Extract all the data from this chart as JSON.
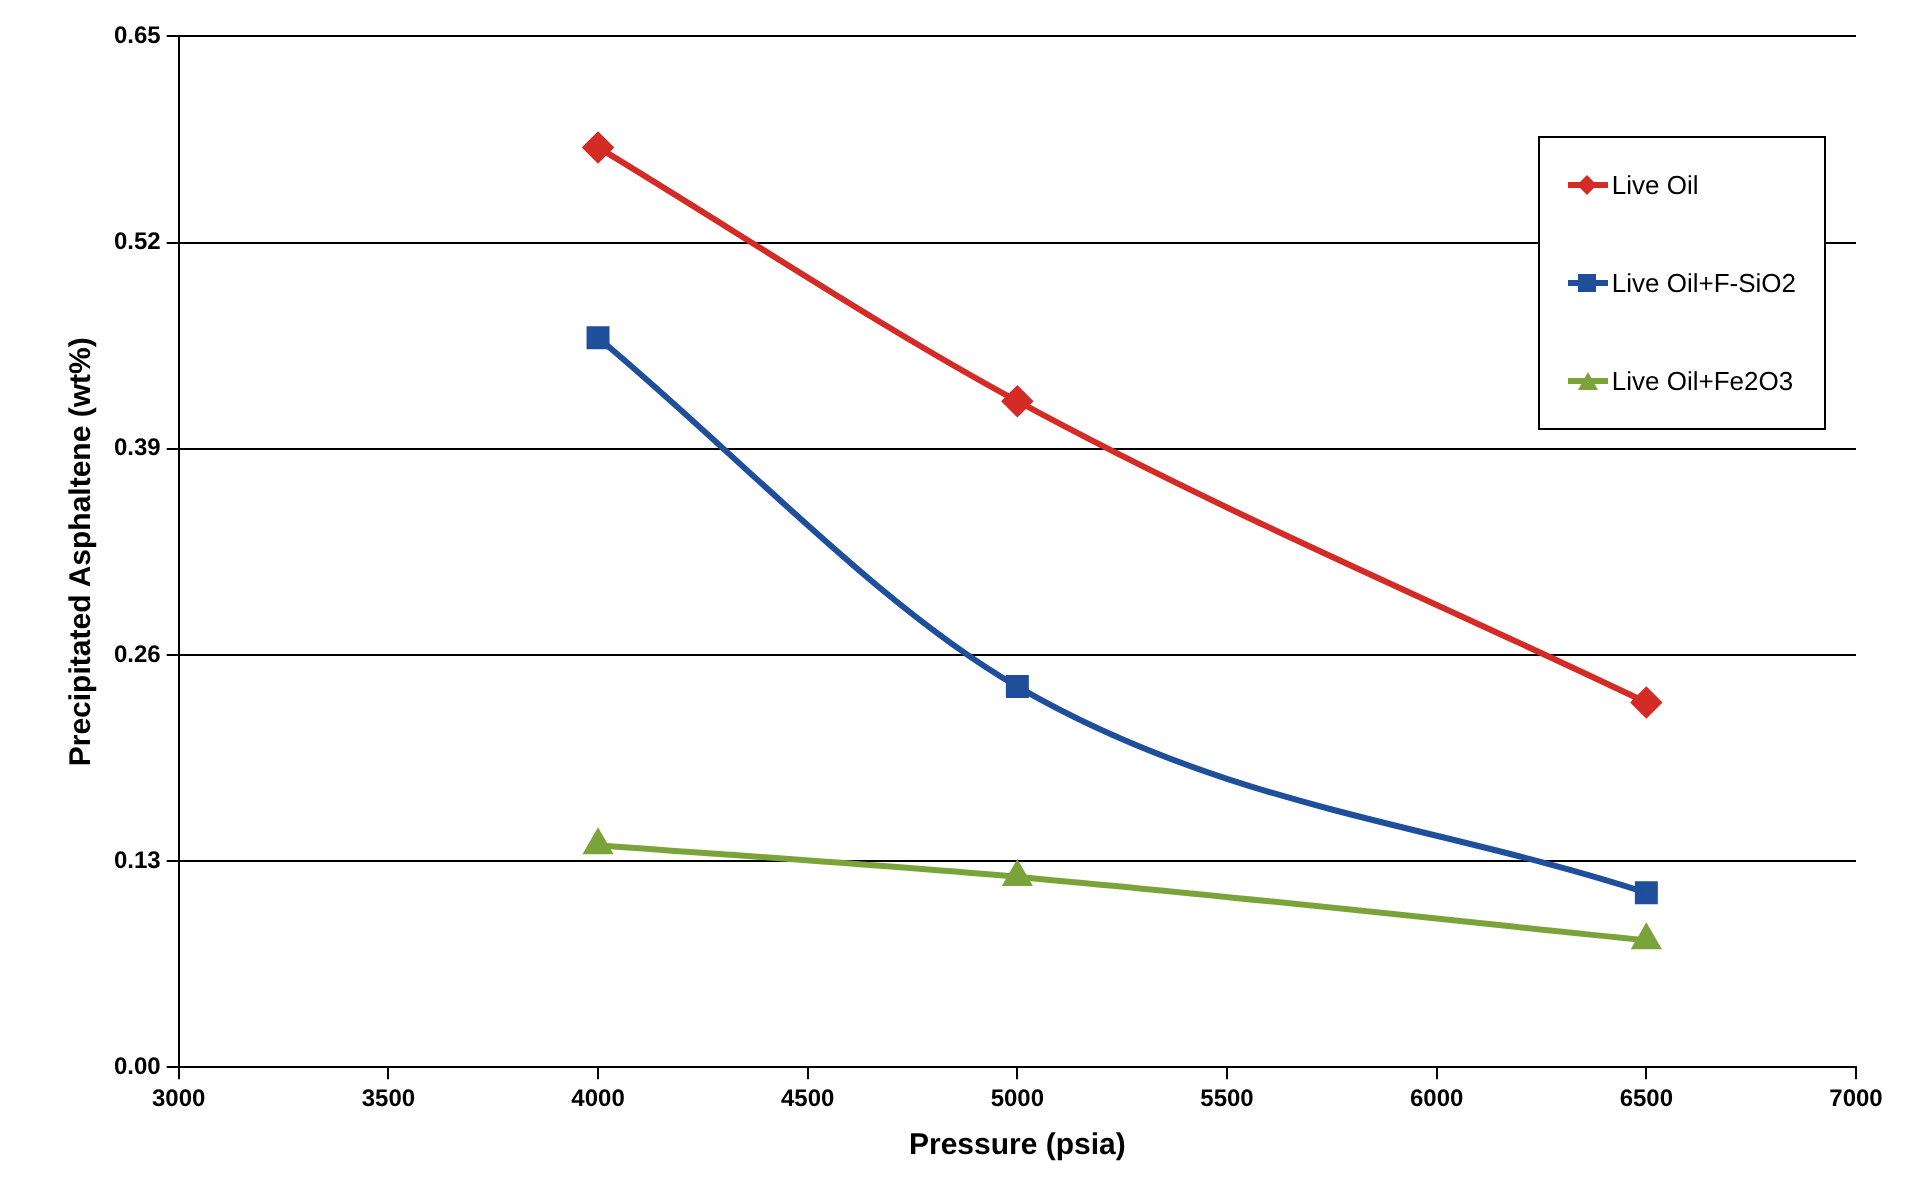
{
  "chart_data": {
    "type": "line",
    "xlabel": "Pressure (psia)",
    "ylabel": "Precipitated Asphaltene (wt%)",
    "x": [
      4000,
      5000,
      6500
    ],
    "series": [
      {
        "name": "Live Oil",
        "color": "#d42b27",
        "values": [
          0.58,
          0.42,
          0.23
        ],
        "marker": "diamond"
      },
      {
        "name": "Live Oil+F-SiO2",
        "color": "#1f4e9a",
        "values": [
          0.46,
          0.24,
          0.11
        ],
        "marker": "square"
      },
      {
        "name": "Live Oil+Fe2O3",
        "color": "#7aa43a",
        "values": [
          0.14,
          0.12,
          0.08
        ],
        "marker": "triangle"
      }
    ],
    "xlim": [
      3000,
      7000
    ],
    "xticks": [
      3000,
      3500,
      4000,
      4500,
      5000,
      5500,
      6000,
      6500,
      7000
    ],
    "ylim": [
      0,
      0.65
    ],
    "yticks": [
      "0.00",
      0.13,
      0.26,
      0.39,
      0.52,
      0.65
    ],
    "grid": "y",
    "legend": "top right",
    "line_style": "solid"
  }
}
